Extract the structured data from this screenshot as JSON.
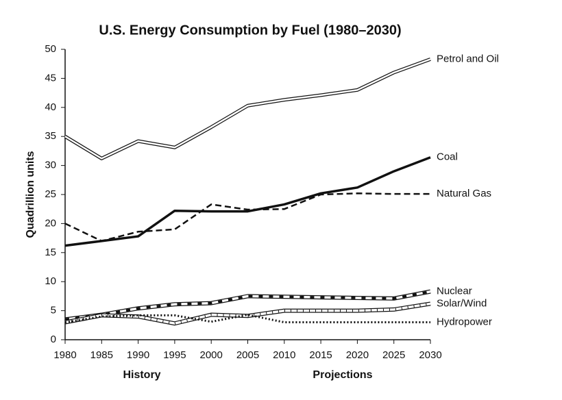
{
  "chart_data": {
    "type": "line",
    "title": "U.S. Energy Consumption by Fuel (1980–2030)",
    "y_label": "Quadrillion units",
    "annotations": [
      "History",
      "Projections"
    ],
    "x": [
      1980,
      1985,
      1990,
      1995,
      2000,
      2005,
      2010,
      2015,
      2020,
      2025,
      2030
    ],
    "xlim": [
      1980,
      2030
    ],
    "xticks": [
      1980,
      1985,
      1990,
      1995,
      2000,
      2005,
      2010,
      2015,
      2020,
      2025,
      2030
    ],
    "ylim": [
      0,
      50
    ],
    "yticks": [
      0,
      5,
      10,
      15,
      20,
      25,
      30,
      35,
      40,
      45,
      50
    ],
    "grid": false,
    "series": [
      {
        "name": "Petrol and Oil",
        "color": "#111111",
        "style": "double",
        "values": [
          35,
          31.2,
          34.2,
          33.1,
          36.6,
          40.3,
          41.3,
          42.1,
          43,
          46,
          48.3
        ]
      },
      {
        "name": "Coal",
        "color": "#111111",
        "style": "solid",
        "values": [
          16.2,
          17,
          17.8,
          22.2,
          22.1,
          22.1,
          23.3,
          25.2,
          26.2,
          29,
          31.4
        ]
      },
      {
        "name": "Natural Gas",
        "color": "#111111",
        "style": "dashed",
        "values": [
          20,
          17,
          18.6,
          19,
          23.3,
          22.4,
          22.5,
          25,
          25.2,
          25.1,
          25.1
        ]
      },
      {
        "name": "Nuclear",
        "color": "#111111",
        "style": "band",
        "values": [
          3.5,
          4.3,
          5.4,
          6.1,
          6.3,
          7.5,
          7.4,
          7.3,
          7.2,
          7.1,
          8.3
        ]
      },
      {
        "name": "Solar/Wind",
        "color": "#111111",
        "style": "hatched",
        "values": [
          3,
          4.2,
          4,
          2.8,
          4.3,
          4.1,
          5,
          5,
          5,
          5.2,
          6.2
        ]
      },
      {
        "name": "Hydropower",
        "color": "#111111",
        "style": "dotted",
        "values": [
          3,
          4,
          4.2,
          4.2,
          3.1,
          4.3,
          3,
          3,
          3,
          3,
          3
        ]
      }
    ]
  }
}
